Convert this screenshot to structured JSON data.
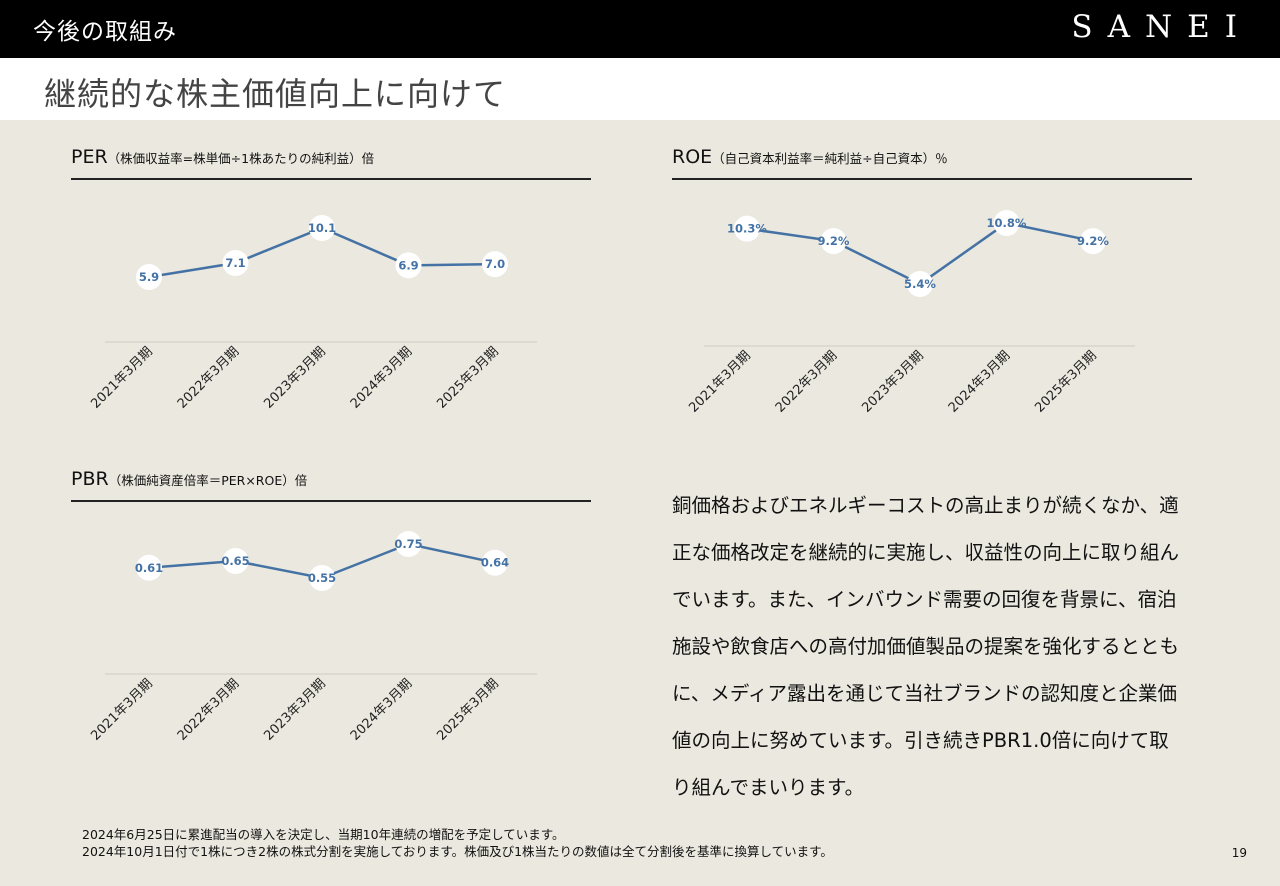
{
  "header": {
    "section": "今後の取組み",
    "logo": "SANEI",
    "title": "継続的な株主価値向上に向けて"
  },
  "colors": {
    "line": "#4472a4",
    "label": "#4472a4",
    "background": "#ebe8df"
  },
  "chart_data": [
    {
      "type": "line",
      "title": "PER",
      "subtitle": "（株価収益率=株単価÷1株あたりの純利益）倍",
      "categories": [
        "2021年3月期",
        "2022年3月期",
        "2023年3月期",
        "2024年3月期",
        "2025年3月期"
      ],
      "values": [
        5.9,
        7.1,
        10.1,
        6.9,
        7.0
      ],
      "labels": [
        "5.9",
        "7.1",
        "10.1",
        "6.9",
        "7.0"
      ],
      "grid": false
    },
    {
      "type": "line",
      "title": "ROE",
      "subtitle": "（自己資本利益率＝純利益÷自己資本）％",
      "categories": [
        "2021年3月期",
        "2022年3月期",
        "2023年3月期",
        "2024年3月期",
        "2025年3月期"
      ],
      "values": [
        10.3,
        9.2,
        5.4,
        10.8,
        9.2
      ],
      "labels": [
        "10.3%",
        "9.2%",
        "5.4%",
        "10.8%",
        "9.2%"
      ],
      "grid": false
    },
    {
      "type": "line",
      "title": "PBR",
      "subtitle": "（株価純資産倍率＝PER×ROE）倍",
      "categories": [
        "2021年3月期",
        "2022年3月期",
        "2023年3月期",
        "2024年3月期",
        "2025年3月期"
      ],
      "values": [
        0.61,
        0.65,
        0.55,
        0.75,
        0.64
      ],
      "labels": [
        "0.61",
        "0.65",
        "0.55",
        "0.75",
        "0.64"
      ],
      "grid": false
    }
  ],
  "body_lines": [
    "銅価格およびエネルギーコストの高止まりが続くなか、適",
    "正な価格改定を継続的に実施し、収益性の向上に取り組ん",
    "でいます。また、インバウンド需要の回復を背景に、宿泊",
    "施設や飲食店への高付加価値製品の提案を強化するととも",
    "に、メディア露出を通じて当社ブランドの認知度と企業価",
    "値の向上に努めています。引き続きPBR1.0倍に向けて取",
    "り組んでまいります。"
  ],
  "notes": [
    "2024年6月25日に累進配当の導入を決定し、当期10年連続の増配を予定しています。",
    "2024年10月1日付で1株につき2株の株式分割を実施しております。株価及び1株当たりの数値は全て分割後を基準に換算しています。"
  ],
  "page_number": "19"
}
